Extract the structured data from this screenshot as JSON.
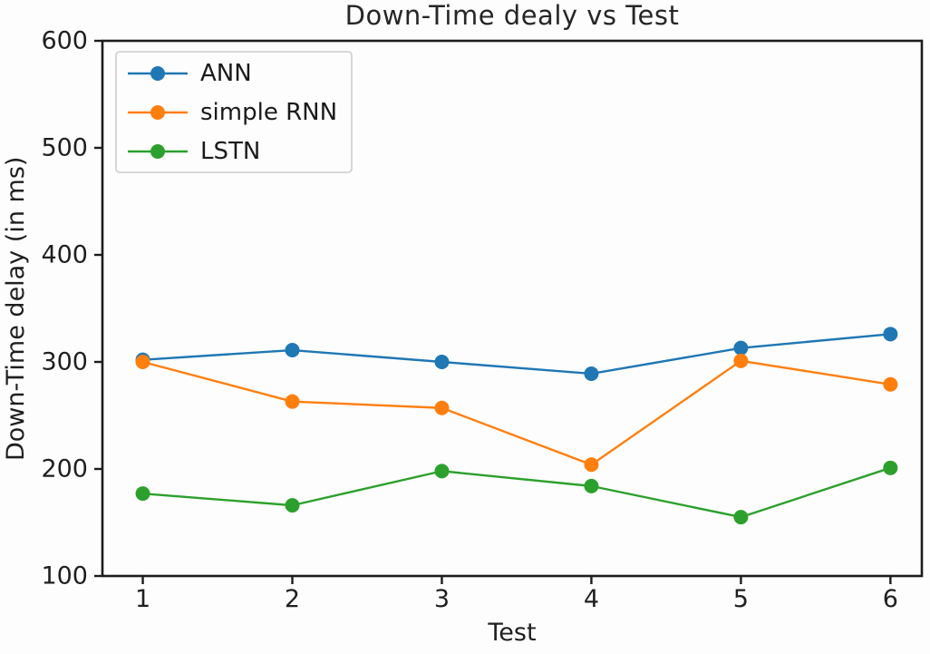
{
  "figure": {
    "background": "#fdfdfd"
  },
  "chart_data": {
    "type": "line",
    "title": "Down-Time dealy vs Test",
    "xlabel": "Test",
    "ylabel": "Down-Time delay (in ms)",
    "x": [
      1,
      2,
      3,
      4,
      5,
      6
    ],
    "xticks": [
      "1",
      "2",
      "3",
      "4",
      "5",
      "6"
    ],
    "yticks": [
      "100",
      "200",
      "300",
      "400",
      "500",
      "600"
    ],
    "xlim": [
      0.73,
      6.21
    ],
    "ylim": [
      100,
      600
    ],
    "grid": false,
    "legend_position": "upper left",
    "legend_entries": [
      "ANN",
      "simple RNN",
      "LSTN"
    ],
    "series": [
      {
        "name": "ANN",
        "color": "#1f77b4",
        "values": [
          302,
          311,
          300,
          289,
          313,
          326
        ]
      },
      {
        "name": "simple RNN",
        "color": "#ff7f0e",
        "values": [
          300,
          263,
          257,
          204,
          301,
          279
        ]
      },
      {
        "name": "LSTN",
        "color": "#2ca02c",
        "values": [
          177,
          166,
          198,
          184,
          155,
          201
        ]
      }
    ],
    "marker": "circle",
    "axis_color": "#1c1c1c",
    "tick_label_color": "#1f1f1f"
  }
}
